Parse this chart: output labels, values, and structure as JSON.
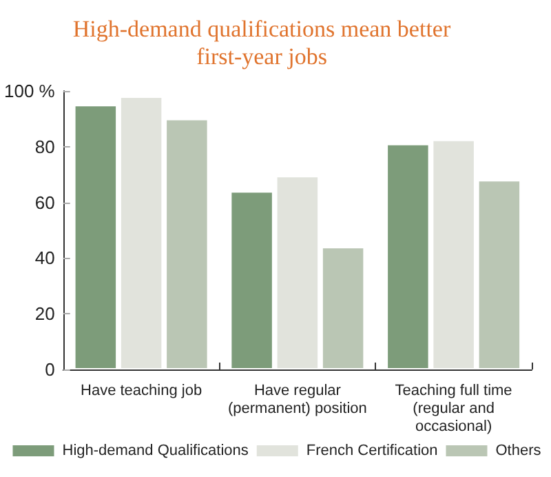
{
  "chart_data": {
    "type": "bar",
    "title": "High-demand qualifications mean better\nfirst-year jobs",
    "categories": [
      "Have teaching job",
      "Have regular\n(permanent) position",
      "Teaching full time\n(regular and\noccasional)"
    ],
    "series": [
      {
        "name": "High-demand Qualifications",
        "color": "#7d9c7a",
        "values": [
          95,
          64,
          81
        ]
      },
      {
        "name": "French Certification",
        "color": "#e1e3dc",
        "values": [
          98,
          69.5,
          82.5
        ]
      },
      {
        "name": "Others",
        "color": "#bac6b4",
        "values": [
          90,
          44,
          68
        ]
      }
    ],
    "ylim": [
      0,
      100
    ],
    "yticks": [
      0,
      20,
      40,
      60,
      80,
      {
        "value": 100,
        "label": "100 %"
      }
    ],
    "grid": false,
    "legend": "bottom"
  }
}
